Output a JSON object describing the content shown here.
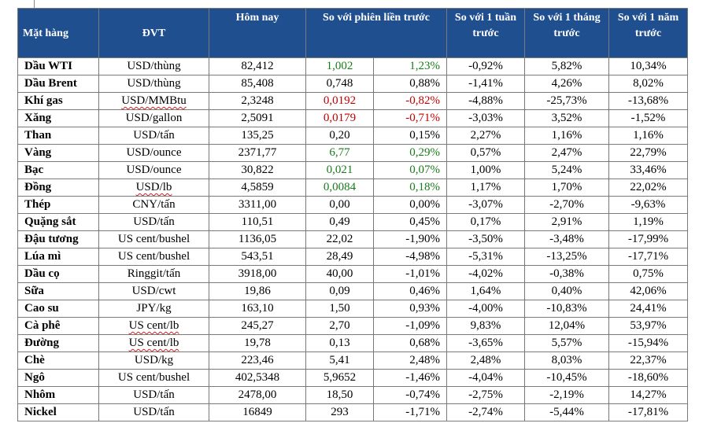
{
  "header": {
    "commodity": "Mặt hàng",
    "unit": "ĐVT",
    "today": "Hôm nay",
    "vs_prev": "So với phiên liền trước",
    "vs_week": "So với 1 tuần trước",
    "vs_month": "So với 1 tháng trước",
    "vs_year": "So với 1 năm trước"
  },
  "colors": {
    "header_bg": "#1f4f8f",
    "up": "#1a7a1a",
    "down": "#c00000"
  },
  "rows": [
    {
      "name": "Dầu WTI",
      "unit": "USD/thùng",
      "today": "82,412",
      "chg": "1,002",
      "chg_pct": "1,23%",
      "week": "-0,92%",
      "month": "5,82%",
      "year": "10,34%",
      "trend": "up"
    },
    {
      "name": "Dầu Brent",
      "unit": "USD/thùng",
      "today": "85,408",
      "chg": "0,748",
      "chg_pct": "0,88%",
      "week": "-1,41%",
      "month": "4,26%",
      "year": "8,02%",
      "trend": "none"
    },
    {
      "name": "Khí gas",
      "unit": "USD/MMBtu",
      "today": "2,3248",
      "chg": "0,0192",
      "chg_pct": "-0,82%",
      "week": "-4,88%",
      "month": "-25,73%",
      "year": "-13,68%",
      "trend": "down"
    },
    {
      "name": "Xăng",
      "unit": "USD/gallon",
      "today": "2,5091",
      "chg": "0,0179",
      "chg_pct": "-0,71%",
      "week": "-3,03%",
      "month": "3,52%",
      "year": "-1,52%",
      "trend": "down"
    },
    {
      "name": "Than",
      "unit": "USD/tấn",
      "today": "135,25",
      "chg": "0,20",
      "chg_pct": "0,15%",
      "week": "2,27%",
      "month": "1,16%",
      "year": "1,16%",
      "trend": "none"
    },
    {
      "name": "Vàng",
      "unit": "USD/ounce",
      "today": "2371,77",
      "chg": "6,77",
      "chg_pct": "0,29%",
      "week": "0,57%",
      "month": "2,47%",
      "year": "22,79%",
      "trend": "up"
    },
    {
      "name": "Bạc",
      "unit": "USD/ounce",
      "today": "30,822",
      "chg": "0,021",
      "chg_pct": "0,07%",
      "week": "1,00%",
      "month": "5,24%",
      "year": "33,46%",
      "trend": "up"
    },
    {
      "name": "Đồng",
      "unit": "USD/lb",
      "today": "4,5859",
      "chg": "0,0084",
      "chg_pct": "0,18%",
      "week": "1,17%",
      "month": "1,70%",
      "year": "22,02%",
      "trend": "up"
    },
    {
      "name": "Thép",
      "unit": "CNY/tấn",
      "today": "3311,00",
      "chg": "0,00",
      "chg_pct": "0,00%",
      "week": "-3,07%",
      "month": "-2,70%",
      "year": "-9,63%",
      "trend": "none"
    },
    {
      "name": "Quặng sắt",
      "unit": "USD/tấn",
      "today": "110,51",
      "chg": "0,49",
      "chg_pct": "0,45%",
      "week": "0,17%",
      "month": "2,91%",
      "year": "1,19%",
      "trend": "none"
    },
    {
      "name": "Đậu tương",
      "unit": "US cent/bushel",
      "today": "1136,05",
      "chg": "22,02",
      "chg_pct": "-1,90%",
      "week": "-3,50%",
      "month": "-3,48%",
      "year": "-17,99%",
      "trend": "none"
    },
    {
      "name": "Lúa mì",
      "unit": "US cent/bushel",
      "today": "543,51",
      "chg": "28,49",
      "chg_pct": "-4,98%",
      "week": "-5,31%",
      "month": "-13,25%",
      "year": "-17,71%",
      "trend": "none"
    },
    {
      "name": "Dầu cọ",
      "unit": "Ringgit/tấn",
      "today": "3918,00",
      "chg": "40,00",
      "chg_pct": "-1,01%",
      "week": "-4,02%",
      "month": "-0,38%",
      "year": "0,75%",
      "trend": "none"
    },
    {
      "name": "Sữa",
      "unit": "USD/cwt",
      "today": "19,86",
      "chg": "0,09",
      "chg_pct": "0,46%",
      "week": "1,64%",
      "month": "0,40%",
      "year": "42,06%",
      "trend": "none"
    },
    {
      "name": "Cao su",
      "unit": "JPY/kg",
      "today": "163,10",
      "chg": "1,50",
      "chg_pct": "0,93%",
      "week": "-4,00%",
      "month": "-10,83%",
      "year": "24,41%",
      "trend": "none"
    },
    {
      "name": "Cà phê",
      "unit": "US cent/lb",
      "today": "245,27",
      "chg": "2,70",
      "chg_pct": "-1,09%",
      "week": "9,83%",
      "month": "12,04%",
      "year": "53,97%",
      "trend": "none"
    },
    {
      "name": "Đường",
      "unit": "US cent/lb",
      "today": "19,78",
      "chg": "0,13",
      "chg_pct": "0,68%",
      "week": "-3,65%",
      "month": "5,57%",
      "year": "-15,94%",
      "trend": "none"
    },
    {
      "name": "Chè",
      "unit": "USD/kg",
      "today": "223,46",
      "chg": "5,41",
      "chg_pct": "2,48%",
      "week": "2,48%",
      "month": "8,03%",
      "year": "22,37%",
      "trend": "none"
    },
    {
      "name": "Ngô",
      "unit": "US cent/bushel",
      "today": "402,5348",
      "chg": "5,9652",
      "chg_pct": "-1,46%",
      "week": "-4,04%",
      "month": "-10,45%",
      "year": "-18,60%",
      "trend": "none"
    },
    {
      "name": "Nhôm",
      "unit": "USD/tấn",
      "today": "2478,00",
      "chg": "18,50",
      "chg_pct": "-0,74%",
      "week": "-2,75%",
      "month": "-2,19%",
      "year": "14,27%",
      "trend": "none"
    },
    {
      "name": "Nickel",
      "unit": "USD/tấn",
      "today": "16849",
      "chg": "293",
      "chg_pct": "-1,71%",
      "week": "-2,74%",
      "month": "-5,44%",
      "year": "-17,81%",
      "trend": "none"
    }
  ]
}
